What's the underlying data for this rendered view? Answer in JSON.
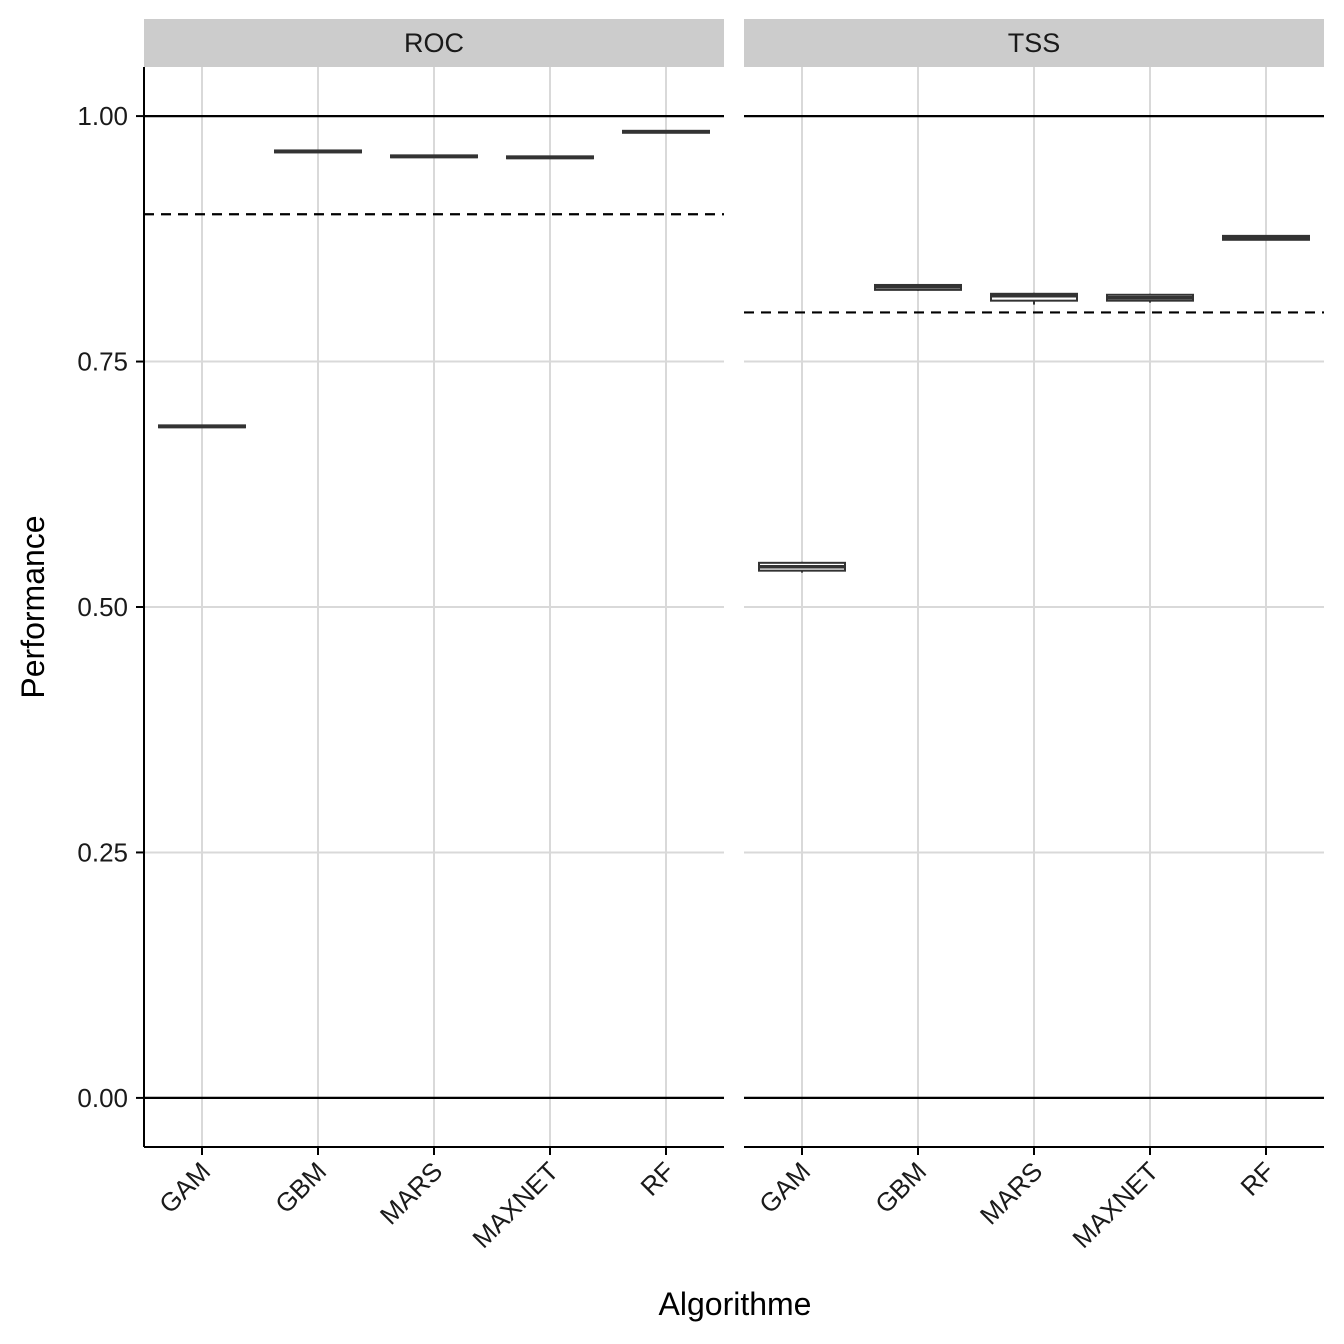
{
  "chart_data": {
    "type": "boxplot",
    "xlabel": "Algorithme",
    "ylabel": "Performance",
    "categories": [
      "GAM",
      "GBM",
      "MARS",
      "MAXNET",
      "RF"
    ],
    "y_ticks": [
      "0.00",
      "0.25",
      "0.50",
      "0.75",
      "1.00"
    ],
    "y_tick_values": [
      0,
      0.25,
      0.5,
      0.75,
      1.0
    ],
    "ylim": [
      -0.05,
      1.05
    ],
    "grid": true,
    "reference_lines": {
      "solid": [
        0,
        1
      ]
    },
    "panels": [
      {
        "name": "ROC",
        "threshold": 0.9,
        "boxes": [
          {
            "category": "GAM",
            "min": 0.683,
            "q1": 0.683,
            "median": 0.684,
            "q3": 0.685,
            "max": 0.685
          },
          {
            "category": "GBM",
            "min": 0.963,
            "q1": 0.963,
            "median": 0.964,
            "q3": 0.965,
            "max": 0.965
          },
          {
            "category": "MARS",
            "min": 0.958,
            "q1": 0.958,
            "median": 0.959,
            "q3": 0.96,
            "max": 0.96
          },
          {
            "category": "MAXNET",
            "min": 0.957,
            "q1": 0.957,
            "median": 0.958,
            "q3": 0.959,
            "max": 0.959
          },
          {
            "category": "RF",
            "min": 0.983,
            "q1": 0.983,
            "median": 0.984,
            "q3": 0.985,
            "max": 0.985
          }
        ]
      },
      {
        "name": "TSS",
        "threshold": 0.8,
        "boxes": [
          {
            "category": "GAM",
            "min": 0.535,
            "q1": 0.537,
            "median": 0.541,
            "q3": 0.545,
            "max": 0.546
          },
          {
            "category": "GBM",
            "min": 0.822,
            "q1": 0.823,
            "median": 0.826,
            "q3": 0.828,
            "max": 0.829
          },
          {
            "category": "MARS",
            "min": 0.808,
            "q1": 0.812,
            "median": 0.817,
            "q3": 0.819,
            "max": 0.82
          },
          {
            "category": "MAXNET",
            "min": 0.81,
            "q1": 0.812,
            "median": 0.815,
            "q3": 0.818,
            "max": 0.819
          },
          {
            "category": "RF",
            "min": 0.874,
            "q1": 0.874,
            "median": 0.876,
            "q3": 0.878,
            "max": 0.878
          }
        ]
      }
    ]
  },
  "colors": {
    "strip_background": "#cccccc",
    "grid": "#d9d9d9",
    "box_fill": "#ffffff",
    "box_stroke": "#333333",
    "reference": "#000000"
  }
}
